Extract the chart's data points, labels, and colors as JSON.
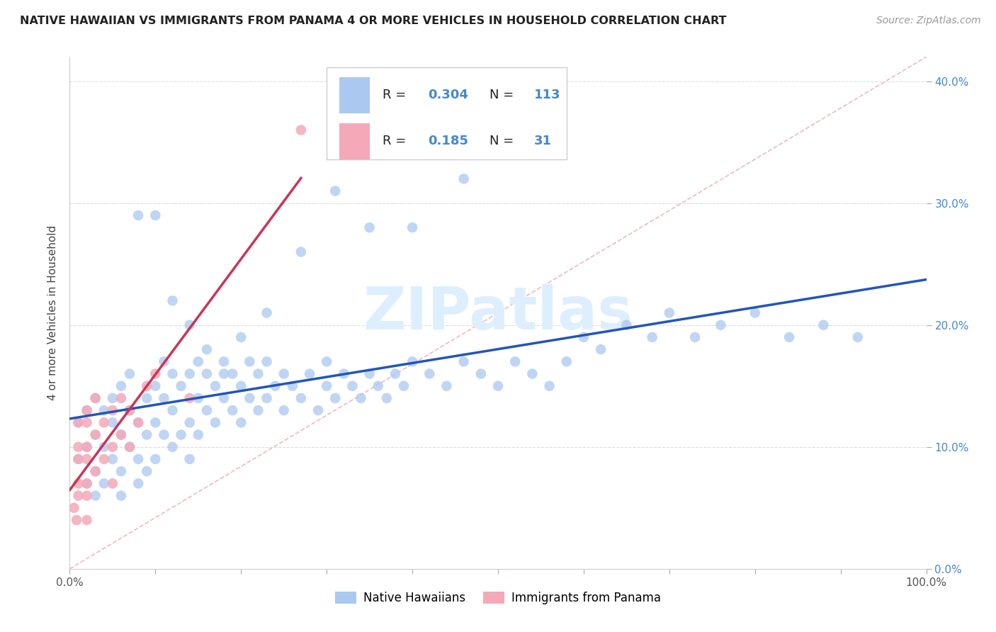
{
  "title": "NATIVE HAWAIIAN VS IMMIGRANTS FROM PANAMA 4 OR MORE VEHICLES IN HOUSEHOLD CORRELATION CHART",
  "source": "Source: ZipAtlas.com",
  "ylabel": "4 or more Vehicles in Household",
  "xmin": 0.0,
  "xmax": 1.0,
  "ymin": 0.0,
  "ymax": 0.42,
  "xtick_positions": [
    0.0,
    0.1,
    0.2,
    0.3,
    0.4,
    0.5,
    0.6,
    0.7,
    0.8,
    0.9,
    1.0
  ],
  "ytick_positions": [
    0.0,
    0.1,
    0.2,
    0.3,
    0.4
  ],
  "r_native": 0.304,
  "n_native": 113,
  "r_panama": 0.185,
  "n_panama": 31,
  "color_native": "#aac8f0",
  "color_panama": "#f5a8b8",
  "color_native_line": "#2255bb",
  "color_panama_line": "#cc3355",
  "color_diag_line": "#f0b0b8",
  "watermark_color": "#ddeeff",
  "legend_box_edge": "#cccccc",
  "right_tick_color": "#4488cc",
  "title_color": "#222222",
  "source_color": "#999999",
  "grid_color": "#dddddd",
  "native_x": [
    0.01,
    0.01,
    0.02,
    0.02,
    0.02,
    0.03,
    0.03,
    0.03,
    0.03,
    0.04,
    0.04,
    0.04,
    0.05,
    0.05,
    0.05,
    0.06,
    0.06,
    0.06,
    0.06,
    0.07,
    0.07,
    0.07,
    0.08,
    0.08,
    0.08,
    0.09,
    0.09,
    0.09,
    0.1,
    0.1,
    0.1,
    0.11,
    0.11,
    0.11,
    0.12,
    0.12,
    0.12,
    0.13,
    0.13,
    0.14,
    0.14,
    0.14,
    0.15,
    0.15,
    0.15,
    0.16,
    0.16,
    0.17,
    0.17,
    0.18,
    0.18,
    0.19,
    0.19,
    0.2,
    0.2,
    0.21,
    0.21,
    0.22,
    0.22,
    0.23,
    0.23,
    0.24,
    0.25,
    0.25,
    0.26,
    0.27,
    0.28,
    0.29,
    0.3,
    0.3,
    0.31,
    0.32,
    0.33,
    0.34,
    0.35,
    0.36,
    0.37,
    0.38,
    0.39,
    0.4,
    0.42,
    0.44,
    0.46,
    0.48,
    0.5,
    0.52,
    0.54,
    0.56,
    0.58,
    0.6,
    0.62,
    0.65,
    0.68,
    0.7,
    0.73,
    0.76,
    0.8,
    0.84,
    0.88,
    0.92,
    0.08,
    0.1,
    0.12,
    0.14,
    0.16,
    0.18,
    0.2,
    0.23,
    0.27,
    0.31,
    0.35,
    0.4,
    0.46
  ],
  "native_y": [
    0.12,
    0.09,
    0.13,
    0.1,
    0.07,
    0.11,
    0.08,
    0.14,
    0.06,
    0.1,
    0.13,
    0.07,
    0.12,
    0.09,
    0.14,
    0.08,
    0.11,
    0.15,
    0.06,
    0.1,
    0.13,
    0.16,
    0.09,
    0.12,
    0.07,
    0.11,
    0.14,
    0.08,
    0.12,
    0.15,
    0.09,
    0.11,
    0.14,
    0.17,
    0.1,
    0.13,
    0.16,
    0.11,
    0.15,
    0.12,
    0.16,
    0.09,
    0.14,
    0.17,
    0.11,
    0.13,
    0.16,
    0.12,
    0.15,
    0.14,
    0.17,
    0.13,
    0.16,
    0.12,
    0.15,
    0.14,
    0.17,
    0.13,
    0.16,
    0.14,
    0.17,
    0.15,
    0.13,
    0.16,
    0.15,
    0.14,
    0.16,
    0.13,
    0.15,
    0.17,
    0.14,
    0.16,
    0.15,
    0.14,
    0.16,
    0.15,
    0.14,
    0.16,
    0.15,
    0.17,
    0.16,
    0.15,
    0.17,
    0.16,
    0.15,
    0.17,
    0.16,
    0.15,
    0.17,
    0.19,
    0.18,
    0.2,
    0.19,
    0.21,
    0.19,
    0.2,
    0.21,
    0.19,
    0.2,
    0.19,
    0.29,
    0.29,
    0.22,
    0.2,
    0.18,
    0.16,
    0.19,
    0.21,
    0.26,
    0.31,
    0.28,
    0.28,
    0.32
  ],
  "panama_x": [
    0.005,
    0.008,
    0.01,
    0.01,
    0.01,
    0.01,
    0.01,
    0.02,
    0.02,
    0.02,
    0.02,
    0.02,
    0.02,
    0.02,
    0.03,
    0.03,
    0.03,
    0.04,
    0.04,
    0.05,
    0.05,
    0.05,
    0.06,
    0.06,
    0.07,
    0.07,
    0.08,
    0.09,
    0.1,
    0.14,
    0.27
  ],
  "panama_y": [
    0.05,
    0.04,
    0.07,
    0.09,
    0.12,
    0.06,
    0.1,
    0.04,
    0.07,
    0.1,
    0.13,
    0.06,
    0.09,
    0.12,
    0.08,
    0.11,
    0.14,
    0.09,
    0.12,
    0.1,
    0.13,
    0.07,
    0.11,
    0.14,
    0.1,
    0.13,
    0.12,
    0.15,
    0.16,
    0.14,
    0.36
  ]
}
